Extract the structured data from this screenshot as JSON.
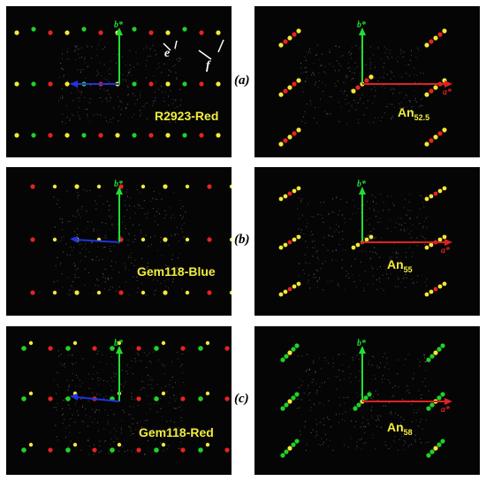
{
  "rows": [
    {
      "label": "(a)",
      "left_sample": "R2923-Red",
      "right_sample_base": "An",
      "right_sample_sub": "52.5"
    },
    {
      "label": "(b)",
      "left_sample": "Gem118-Blue",
      "right_sample_base": "An",
      "right_sample_sub": "55"
    },
    {
      "label": "(c)",
      "left_sample": "Gem118-Red",
      "right_sample_base": "An",
      "right_sample_sub": "58"
    }
  ],
  "axes": {
    "b_star": "b*",
    "a_star": "a*"
  },
  "annotations": {
    "e": "e",
    "f": "f"
  },
  "colors": {
    "b_axis": "#22dd33",
    "a_axis_left": "#2233dd",
    "a_axis_right": "#dd2222",
    "label_yellow": "#f2ee3c",
    "spot_yellow": "#f5e83a",
    "spot_red": "#e8231f",
    "spot_green": "#22d02a"
  }
}
